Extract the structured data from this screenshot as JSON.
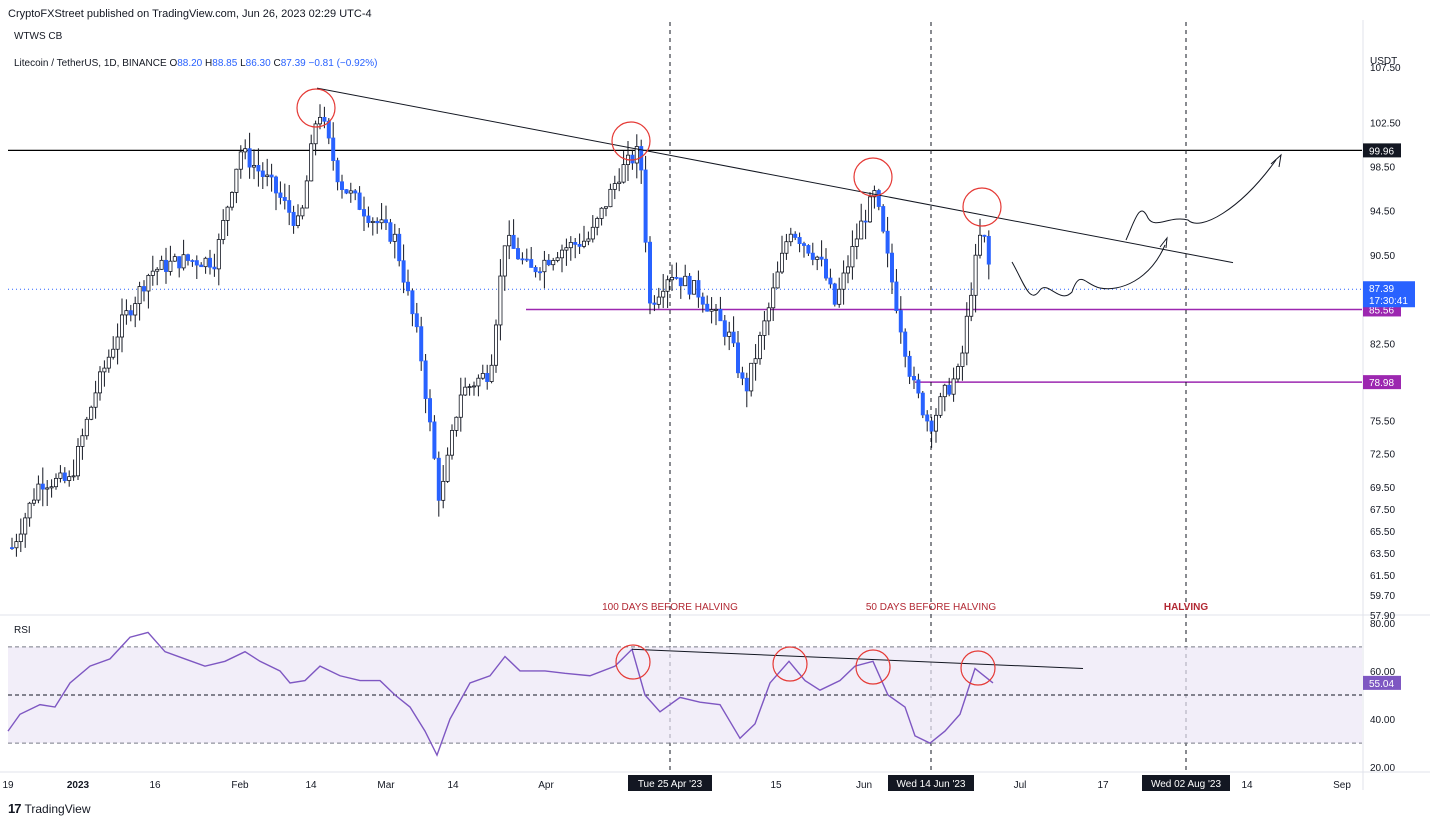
{
  "header": {
    "published": "CryptoFXStreet published on TradingView.com, Jun 26, 2023 02:29 UTC-4",
    "ticker": "WTWS CB"
  },
  "legend": {
    "symbol": "Litecoin / TetherUS, 1D, BINANCE",
    "o_label": "O",
    "o": "88.20",
    "h_label": "H",
    "h": "88.85",
    "l_label": "L",
    "l": "86.30",
    "c_label": "C",
    "c": "87.39",
    "change": "−0.81 (−0.92%)"
  },
  "rsi_panel": {
    "label": "RSI"
  },
  "footer": {
    "brand": "TradingView",
    "brand_mark": "17"
  },
  "chart_data": [
    {
      "type": "candlestick",
      "currency": "USDT",
      "y_ticks": [
        "107.50",
        "102.50",
        "98.50",
        "94.50",
        "90.50",
        "82.50",
        "75.50",
        "72.50",
        "69.50",
        "67.50",
        "65.50",
        "63.50",
        "61.50",
        "59.70",
        "57.90"
      ],
      "x_ticks": [
        "19",
        "2023",
        "16",
        "Feb",
        "14",
        "Mar",
        "14",
        "Apr",
        "15",
        "Jun",
        "Jul",
        "17",
        "14",
        "Sep"
      ],
      "ylim": [
        57.9,
        109.5
      ],
      "last_price": "87.39",
      "countdown": "17:30:41",
      "levels": [
        {
          "value": 99.96,
          "label": "99.96",
          "color": "#000000"
        },
        {
          "value": 85.56,
          "label": "85.56",
          "color": "#9c27b0"
        },
        {
          "value": 78.98,
          "label": "78.98",
          "color": "#9c27b0"
        }
      ],
      "vertical_markers": [
        {
          "date_label": "Tue 25 Apr '23",
          "annotation": "100 DAYS BEFORE HALVING"
        },
        {
          "date_label": "Wed 14 Jun '23",
          "annotation": "50 DAYS BEFORE HALVING"
        },
        {
          "date_label": "Wed 02 Aug '23",
          "annotation": "HALVING"
        }
      ],
      "colors": {
        "up": "#ffffff",
        "down": "#2962ff",
        "wick": "#131722",
        "circle": "#e53935",
        "level_purple": "#9c27b0"
      }
    },
    {
      "type": "line",
      "name": "RSI",
      "y_ticks": [
        "80.00",
        "60.00",
        "40.00",
        "20.00"
      ],
      "ylim": [
        18,
        82
      ],
      "band": [
        70,
        30
      ],
      "mid": 50,
      "last_value": "55.04",
      "color": "#7e57c2"
    }
  ]
}
